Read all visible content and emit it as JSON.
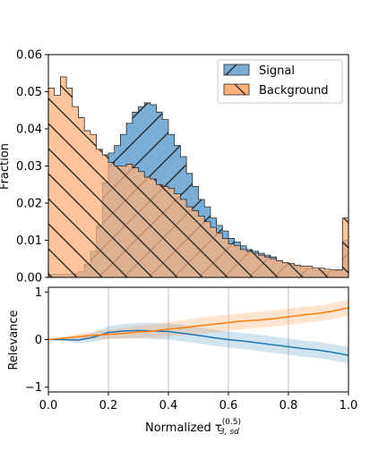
{
  "chart_data": [
    {
      "type": "histogram",
      "xlim": [
        0.0,
        1.0
      ],
      "ylim": [
        0.0,
        0.06
      ],
      "ylabel": "Fraction",
      "yticks": [
        0.0,
        0.01,
        0.02,
        0.03,
        0.04,
        0.05,
        0.06
      ],
      "ytick_labels": [
        "0.00",
        "0.01",
        "0.02",
        "0.03",
        "0.04",
        "0.05",
        "0.06"
      ],
      "bin_edges_start": 0.0,
      "bin_width": 0.02,
      "legend": {
        "placement": "top-right",
        "entries": [
          "Signal",
          "Background"
        ]
      },
      "series": [
        {
          "name": "Signal",
          "color": "#7aaed6",
          "hatch": "/",
          "values": [
            0.0008,
            0.0008,
            0.0009,
            0.0009,
            0.001,
            0.0015,
            0.0035,
            0.007,
            0.014,
            0.0255,
            0.0335,
            0.0355,
            0.0385,
            0.0415,
            0.0445,
            0.046,
            0.047,
            0.0465,
            0.0445,
            0.0425,
            0.0385,
            0.0355,
            0.0325,
            0.028,
            0.0245,
            0.021,
            0.019,
            0.016,
            0.014,
            0.0125,
            0.0105,
            0.0095,
            0.0085,
            0.0075,
            0.007,
            0.0065,
            0.006,
            0.0055,
            0.0045,
            0.004,
            0.0035,
            0.003,
            0.0025,
            0.0025,
            0.002,
            0.0018,
            0.0016,
            0.0015,
            0.002,
            0.01
          ]
        },
        {
          "name": "Background",
          "color": "#fdb07a",
          "hatch": "\\",
          "values": [
            0.051,
            0.049,
            0.054,
            0.051,
            0.046,
            0.043,
            0.0395,
            0.0385,
            0.0345,
            0.033,
            0.031,
            0.03,
            0.03,
            0.0305,
            0.0295,
            0.0285,
            0.027,
            0.0265,
            0.025,
            0.0245,
            0.024,
            0.0225,
            0.021,
            0.019,
            0.018,
            0.0165,
            0.015,
            0.0135,
            0.012,
            0.0105,
            0.009,
            0.0085,
            0.0075,
            0.007,
            0.0065,
            0.006,
            0.0055,
            0.005,
            0.0045,
            0.004,
            0.0038,
            0.0033,
            0.003,
            0.003,
            0.0025,
            0.0025,
            0.0022,
            0.002,
            0.002,
            0.016
          ]
        }
      ]
    },
    {
      "type": "line",
      "xlim": [
        0.0,
        1.0
      ],
      "ylim": [
        -1.1,
        1.1
      ],
      "xlabel": "Normalized τ",
      "xlabel_super": "(0.5)",
      "xlabel_sub": "3, sd",
      "ylabel": "Relevance",
      "xticks": [
        0.0,
        0.2,
        0.4,
        0.6,
        0.8,
        1.0
      ],
      "xtick_labels": [
        "0.0",
        "0.2",
        "0.4",
        "0.6",
        "0.8",
        "1.0"
      ],
      "yticks": [
        -1,
        0,
        1
      ],
      "ytick_labels": [
        "−1",
        "0",
        "1"
      ],
      "grid": "x-only",
      "x": [
        0.0,
        0.05,
        0.1,
        0.15,
        0.2,
        0.25,
        0.3,
        0.35,
        0.4,
        0.45,
        0.5,
        0.55,
        0.6,
        0.65,
        0.7,
        0.75,
        0.8,
        0.85,
        0.9,
        0.95,
        1.0
      ],
      "series": [
        {
          "color": "#1f77b4",
          "values": [
            0.0,
            0.0,
            -0.01,
            0.05,
            0.15,
            0.18,
            0.19,
            0.18,
            0.17,
            0.13,
            0.09,
            0.04,
            0.0,
            -0.03,
            -0.07,
            -0.11,
            -0.15,
            -0.19,
            -0.22,
            -0.27,
            -0.33
          ],
          "band_half_width": [
            0.0,
            0.03,
            0.06,
            0.1,
            0.13,
            0.15,
            0.16,
            0.17,
            0.17,
            0.17,
            0.17,
            0.17,
            0.17,
            0.17,
            0.17,
            0.17,
            0.17,
            0.17,
            0.17,
            0.17,
            0.17
          ]
        },
        {
          "color": "#ff7f0e",
          "values": [
            0.0,
            0.03,
            0.06,
            0.09,
            0.11,
            0.13,
            0.16,
            0.18,
            0.22,
            0.25,
            0.29,
            0.32,
            0.36,
            0.39,
            0.41,
            0.44,
            0.48,
            0.52,
            0.55,
            0.6,
            0.67
          ],
          "band_half_width": [
            0.0,
            0.03,
            0.06,
            0.08,
            0.1,
            0.12,
            0.13,
            0.14,
            0.15,
            0.16,
            0.17,
            0.17,
            0.17,
            0.17,
            0.17,
            0.17,
            0.17,
            0.17,
            0.17,
            0.17,
            0.17
          ]
        }
      ]
    }
  ]
}
